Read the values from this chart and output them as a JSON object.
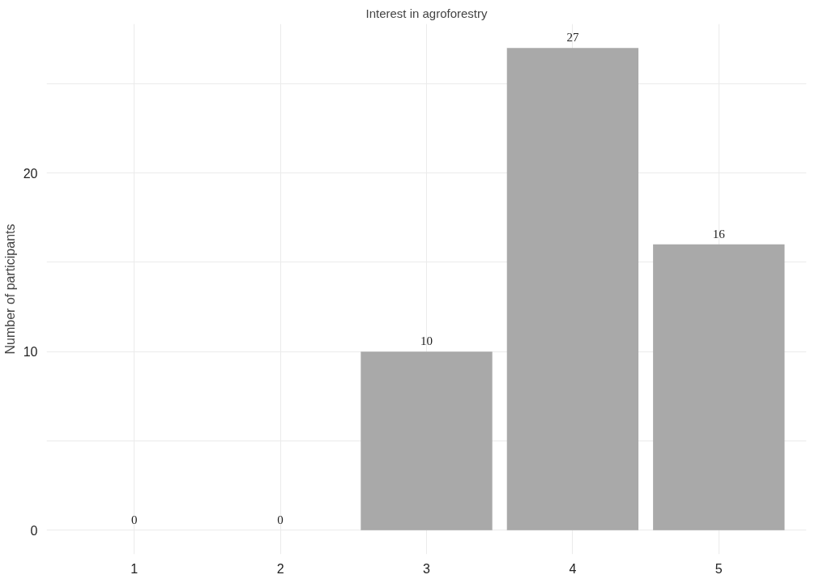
{
  "chart_data": {
    "type": "bar",
    "title": "Interest in agroforestry",
    "ylabel": "Number of participants",
    "categories": [
      "1",
      "2",
      "3",
      "4",
      "5"
    ],
    "values": [
      0,
      0,
      10,
      27,
      16
    ],
    "color": "#a9a9a9",
    "ylim": [
      -1.35,
      28.35
    ],
    "yticks": [
      0,
      {
        "value": 5,
        "label": null
      },
      10,
      {
        "value": 15,
        "label": null
      },
      20,
      {
        "value": 25,
        "label": null
      }
    ],
    "grid": true,
    "data_labels": true
  }
}
